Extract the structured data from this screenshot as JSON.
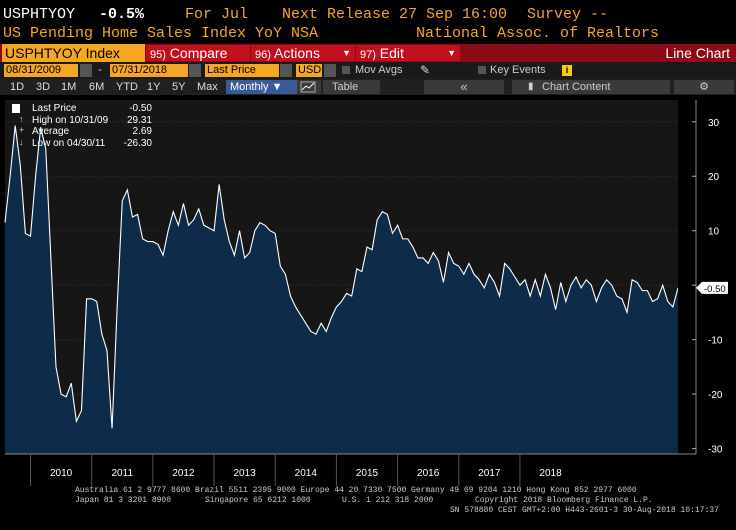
{
  "header": {
    "ticker": "USPHTYOY",
    "change": "-0.5%",
    "period": "For Jul",
    "next_release": "Next Release 27 Sep 16:00",
    "survey": "Survey --",
    "description": "US Pending Home Sales Index YoY NSA",
    "source": "National Assoc. of Realtors"
  },
  "toolbar": {
    "index_label": "USPHTYOY Index",
    "compare_num": "95)",
    "compare": "Compare",
    "actions_num": "96)",
    "actions": "Actions",
    "edit_num": "97)",
    "edit": "Edit",
    "chart_type": "Line Chart"
  },
  "controls": {
    "start_date": "08/31/2009",
    "end_date": "07/31/2018",
    "price_field": "Last Price",
    "currency": "USD",
    "mov_avgs": "Mov Avgs",
    "key_events": "Key Events",
    "key_events_badge": "i",
    "ranges": [
      "1D",
      "3D",
      "1M",
      "6M",
      "YTD",
      "1Y",
      "5Y",
      "Max"
    ],
    "frequency": "Monthly ▼",
    "table": "Table",
    "chart_content": "Chart Content",
    "collapse": "«",
    "gear": "⚙"
  },
  "legend": [
    {
      "label": "Last Price",
      "value": "-0.50"
    },
    {
      "label": "High on 10/31/09",
      "value": "29.31"
    },
    {
      "label": "Average",
      "value": "2.69"
    },
    {
      "label": "Low on 04/30/11",
      "value": "-26.30"
    }
  ],
  "colors": {
    "fill": "#0e2c4a",
    "line": "#ffffff",
    "accent": "#f5a623",
    "bar": "#8c0a16"
  },
  "chart_data": {
    "type": "area",
    "title": "",
    "xlabel": "",
    "ylabel": "",
    "ylim": [
      -31,
      34
    ],
    "yticks": [
      30,
      20,
      10,
      0,
      -10,
      -20,
      -30
    ],
    "ytick_labels": [
      "30",
      "20",
      "10",
      "0",
      "-10",
      "-20",
      "-30"
    ],
    "xticks": [
      "2010",
      "2011",
      "2012",
      "2013",
      "2014",
      "2015",
      "2016",
      "2017",
      "2018"
    ],
    "last_value_label": "-0.50",
    "x_start": "2009-08",
    "series": [
      {
        "values": [
          11.5,
          20,
          29.3,
          22,
          9.5,
          9,
          20,
          29,
          25,
          5,
          -15,
          -20,
          -20.5,
          -18,
          -25,
          -23,
          -2.5,
          -2.5,
          -3,
          -9,
          -12,
          -26.3,
          -4,
          15.5,
          17.5,
          12.5,
          13,
          8.5,
          8,
          8,
          7.5,
          5.5,
          10,
          13.5,
          11,
          15,
          11,
          12,
          14,
          11,
          10.5,
          10,
          18.5,
          12,
          8,
          5.5,
          10,
          5,
          6,
          10,
          11.5,
          11,
          10,
          9.5,
          3.5,
          2,
          -2,
          -4,
          -5.5,
          -7,
          -8.5,
          -9,
          -7,
          -8.5,
          -6,
          -4,
          -3,
          -1.5,
          -2,
          3,
          2.5,
          7,
          6.5,
          12,
          13.5,
          13,
          9.5,
          11,
          8.5,
          8.5,
          7,
          5,
          5,
          4,
          6,
          4.5,
          0.5,
          6,
          4,
          3.5,
          2,
          4,
          2,
          1,
          -0.5,
          2,
          0.5,
          -2,
          4,
          3,
          1.5,
          0,
          1,
          -2,
          1,
          -2,
          2,
          -0.5,
          -4.5,
          0.5,
          -3,
          0,
          1.5,
          -0.5,
          1,
          0,
          -3,
          -0.5,
          1,
          0,
          -2,
          -2.5,
          -5,
          1,
          0.5,
          -1,
          -1,
          -3,
          -2.5,
          0,
          -3,
          -4,
          -0.5
        ]
      }
    ]
  },
  "footer": {
    "line1": "Australia 61 2 9777 8600 Brazil 5511 2395 9000 Europe 44 20 7330 7500 Germany 49 69 9204 1210 Hong Kong 852 2977 6000",
    "line2a": "Japan 81 3 3201 8900",
    "line2b": "Singapore 65 6212 1000",
    "line2c": "U.S. 1 212 318 2000",
    "line2d": "Copyright 2018 Bloomberg Finance L.P.",
    "line3": "SN 578880 CEST GMT+2:00 H443-2601-3 30-Aug-2018 10:17:37"
  }
}
